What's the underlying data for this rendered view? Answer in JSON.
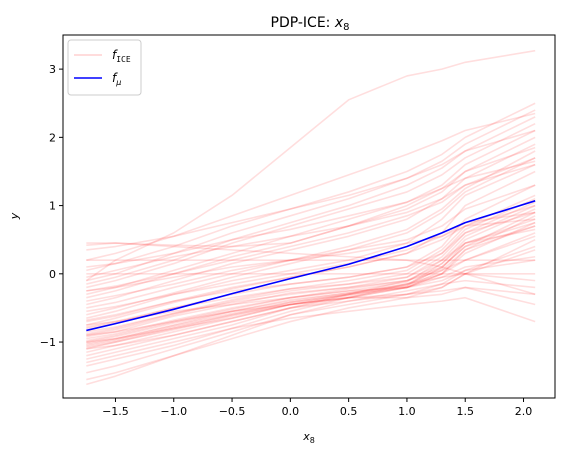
{
  "chart_data": {
    "type": "line",
    "title_prefix": "PDP-ICE: ",
    "title_var": "x",
    "title_sub": "8",
    "xlabel_var": "x",
    "xlabel_sub": "8",
    "ylabel": "y",
    "xlim": [
      -1.95,
      2.27
    ],
    "ylim": [
      -1.82,
      3.5
    ],
    "x_ticks": [
      -1.5,
      -1.0,
      -0.5,
      0.0,
      0.5,
      1.0,
      1.5,
      2.0
    ],
    "x_tick_labels": [
      "−1.5",
      "−1.0",
      "−0.5",
      "0.0",
      "0.5",
      "1.0",
      "1.5",
      "2.0"
    ],
    "y_ticks": [
      -1,
      0,
      1,
      2,
      3
    ],
    "y_tick_labels": [
      "−1",
      "0",
      "1",
      "2",
      "3"
    ],
    "grid": false,
    "legend_position": "top-left",
    "legend": [
      {
        "var": "f",
        "sub": "ICE"
      },
      {
        "var": "f",
        "sub": "μ"
      }
    ],
    "x": [
      -1.75,
      -1.5,
      -1.0,
      -0.5,
      0.0,
      0.5,
      1.0,
      1.3,
      1.5,
      2.1
    ],
    "series": [
      {
        "name": "f_μ",
        "role": "mean",
        "color": "#0000ff",
        "values": [
          -0.83,
          -0.73,
          -0.52,
          -0.29,
          -0.07,
          0.14,
          0.4,
          0.6,
          0.75,
          1.07
        ]
      }
    ],
    "ice_color": "#ff0000",
    "ice_opacity": 0.13,
    "ice_lines": [
      [
        -1.62,
        -1.5,
        -1.2,
        -0.9,
        -0.6,
        -0.4,
        -0.3,
        -0.2,
        0.0,
        0.5
      ],
      [
        -1.55,
        -1.45,
        -1.2,
        -0.95,
        -0.7,
        -0.5,
        -0.35,
        -0.2,
        0.0,
        0.35
      ],
      [
        -1.45,
        -1.35,
        -1.1,
        -0.85,
        -0.6,
        -0.45,
        -0.3,
        -0.15,
        0.05,
        0.4
      ],
      [
        -1.35,
        -1.25,
        -1.05,
        -0.8,
        -0.55,
        -0.35,
        -0.15,
        0.0,
        0.2,
        0.6
      ],
      [
        -1.25,
        -1.15,
        -0.95,
        -0.75,
        -0.5,
        -0.3,
        -0.1,
        0.05,
        0.2,
        0.55
      ],
      [
        -1.2,
        -1.1,
        -0.9,
        -0.7,
        -0.5,
        -0.35,
        -0.2,
        -0.05,
        0.1,
        0.25
      ],
      [
        -1.15,
        -1.05,
        -0.85,
        -0.65,
        -0.45,
        -0.3,
        -0.15,
        -0.05,
        0.0,
        -0.1
      ],
      [
        -1.1,
        -1.05,
        -0.9,
        -0.7,
        -0.5,
        -0.4,
        -0.25,
        -0.15,
        -0.1,
        -0.2
      ],
      [
        -1.1,
        -1.0,
        -0.8,
        -0.65,
        -0.45,
        -0.35,
        -0.2,
        0.0,
        0.3,
        0.75
      ],
      [
        -1.08,
        -1.0,
        -0.82,
        -0.62,
        -0.45,
        -0.32,
        -0.2,
        0.05,
        0.35,
        0.85
      ],
      [
        -1.06,
        -0.98,
        -0.78,
        -0.6,
        -0.42,
        -0.3,
        -0.18,
        0.1,
        0.4,
        0.9
      ],
      [
        -1.04,
        -0.96,
        -0.76,
        -0.58,
        -0.42,
        -0.3,
        -0.2,
        0.0,
        0.35,
        0.7
      ],
      [
        -1.02,
        -0.95,
        -0.75,
        -0.55,
        -0.38,
        -0.28,
        -0.15,
        0.08,
        0.45,
        0.8
      ],
      [
        -1.0,
        -0.92,
        -0.72,
        -0.55,
        -0.4,
        -0.28,
        -0.17,
        0.15,
        0.5,
        0.95
      ],
      [
        -0.98,
        -0.9,
        -0.7,
        -0.52,
        -0.35,
        -0.25,
        -0.12,
        0.2,
        0.55,
        1.0
      ],
      [
        -0.95,
        -0.88,
        -0.68,
        -0.5,
        -0.35,
        -0.22,
        -0.1,
        0.15,
        0.45,
        0.75
      ],
      [
        -0.92,
        -0.85,
        -0.62,
        -0.45,
        -0.28,
        -0.2,
        -0.05,
        0.25,
        0.6,
        1.05
      ],
      [
        -0.9,
        -0.82,
        -0.6,
        -0.4,
        -0.25,
        -0.15,
        0.0,
        0.3,
        0.65,
        1.1
      ],
      [
        -0.88,
        -0.8,
        -0.58,
        -0.42,
        -0.3,
        -0.2,
        -0.1,
        0.1,
        0.4,
        0.7
      ],
      [
        -0.85,
        -0.78,
        -0.58,
        -0.38,
        -0.22,
        -0.1,
        0.05,
        0.35,
        0.7,
        1.15
      ],
      [
        -0.8,
        -0.72,
        -0.5,
        -0.3,
        -0.15,
        -0.05,
        0.1,
        0.4,
        0.8,
        1.3
      ],
      [
        -0.78,
        -0.7,
        -0.5,
        -0.35,
        -0.22,
        -0.15,
        -0.05,
        0.2,
        0.45,
        0.65
      ],
      [
        -0.75,
        -0.65,
        -0.42,
        -0.22,
        -0.05,
        0.1,
        0.3,
        0.5,
        0.7,
        1.0
      ],
      [
        -0.7,
        -0.62,
        -0.4,
        -0.2,
        -0.05,
        0.1,
        0.3,
        0.6,
        1.0,
        1.5
      ],
      [
        -0.68,
        -0.6,
        -0.4,
        -0.25,
        -0.15,
        -0.05,
        0.1,
        0.3,
        0.6,
        0.9
      ],
      [
        -0.65,
        -0.55,
        -0.3,
        -0.1,
        0.05,
        0.2,
        0.45,
        0.8,
        1.15,
        1.6
      ],
      [
        -0.6,
        -0.5,
        -0.28,
        -0.05,
        0.15,
        0.35,
        0.6,
        0.9,
        1.2,
        1.7
      ],
      [
        -0.55,
        -0.48,
        -0.3,
        -0.15,
        0.0,
        0.15,
        0.35,
        0.55,
        0.75,
        0.9
      ],
      [
        -0.5,
        -0.42,
        -0.2,
        0.0,
        0.2,
        0.4,
        0.65,
        0.95,
        1.25,
        1.8
      ],
      [
        -0.45,
        -0.35,
        -0.1,
        0.15,
        0.35,
        0.55,
        0.8,
        1.1,
        1.4,
        1.9
      ],
      [
        -0.4,
        -0.32,
        -0.15,
        0.05,
        0.2,
        0.35,
        0.5,
        0.7,
        0.95,
        1.3
      ],
      [
        -0.35,
        -0.25,
        0.0,
        0.25,
        0.45,
        0.7,
        0.95,
        1.2,
        1.5,
        2.0
      ],
      [
        -0.3,
        -0.2,
        0.05,
        0.3,
        0.55,
        0.8,
        1.05,
        1.3,
        1.6,
        2.1
      ],
      [
        -0.25,
        -0.18,
        0.0,
        0.2,
        0.4,
        0.6,
        0.85,
        1.05,
        1.3,
        1.7
      ],
      [
        -0.2,
        -0.1,
        0.15,
        0.45,
        0.7,
        0.95,
        1.2,
        1.45,
        1.7,
        2.2
      ],
      [
        -0.15,
        -0.05,
        0.2,
        0.5,
        0.75,
        1.0,
        1.3,
        1.55,
        1.8,
        2.3
      ],
      [
        -0.1,
        0.0,
        0.3,
        0.6,
        0.85,
        1.1,
        1.4,
        1.65,
        1.9,
        2.4
      ],
      [
        -0.05,
        0.05,
        0.25,
        0.4,
        0.55,
        0.7,
        0.9,
        1.1,
        1.3,
        1.6
      ],
      [
        0.0,
        0.0,
        0.0,
        0.0,
        0.0,
        0.0,
        0.0,
        0.0,
        0.0,
        0.0
      ],
      [
        0.2,
        0.2,
        0.2,
        0.2,
        0.2,
        0.2,
        0.2,
        0.2,
        0.2,
        0.2
      ],
      [
        0.05,
        0.15,
        0.4,
        0.7,
        0.95,
        1.2,
        1.5,
        1.75,
        2.0,
        2.5
      ],
      [
        0.2,
        0.3,
        0.55,
        0.85,
        1.15,
        1.45,
        1.75,
        1.95,
        2.1,
        2.35
      ],
      [
        0.35,
        0.4,
        0.55,
        0.75,
        0.95,
        1.15,
        1.4,
        1.6,
        1.8,
        2.1
      ],
      [
        0.45,
        0.45,
        0.42,
        0.4,
        0.45,
        0.7,
        1.0,
        1.25,
        1.5,
        1.85
      ],
      [
        0.42,
        0.45,
        0.4,
        0.35,
        0.3,
        0.25,
        0.2,
        0.1,
        0.0,
        -0.3
      ],
      [
        -0.1,
        0.2,
        0.6,
        1.15,
        1.85,
        2.55,
        2.9,
        3.0,
        3.1,
        3.27
      ],
      [
        -0.9,
        -0.85,
        -0.7,
        -0.55,
        -0.45,
        -0.35,
        -0.3,
        -0.25,
        -0.2,
        -0.3
      ],
      [
        -1.0,
        -0.95,
        -0.8,
        -0.6,
        -0.45,
        -0.35,
        -0.35,
        -0.3,
        -0.2,
        -0.45
      ],
      [
        -0.75,
        -0.7,
        -0.55,
        -0.45,
        -0.35,
        -0.25,
        -0.2,
        -0.1,
        0.05,
        0.2
      ],
      [
        -1.3,
        -1.2,
        -1.0,
        -0.8,
        -0.65,
        -0.55,
        -0.45,
        -0.4,
        -0.35,
        -0.7
      ],
      [
        -0.25,
        -0.2,
        -0.05,
        0.1,
        0.2,
        0.3,
        0.45,
        0.55,
        0.7,
        0.8
      ],
      [
        0.1,
        0.15,
        0.3,
        0.5,
        0.65,
        0.85,
        1.05,
        1.25,
        1.4,
        1.65
      ]
    ]
  }
}
